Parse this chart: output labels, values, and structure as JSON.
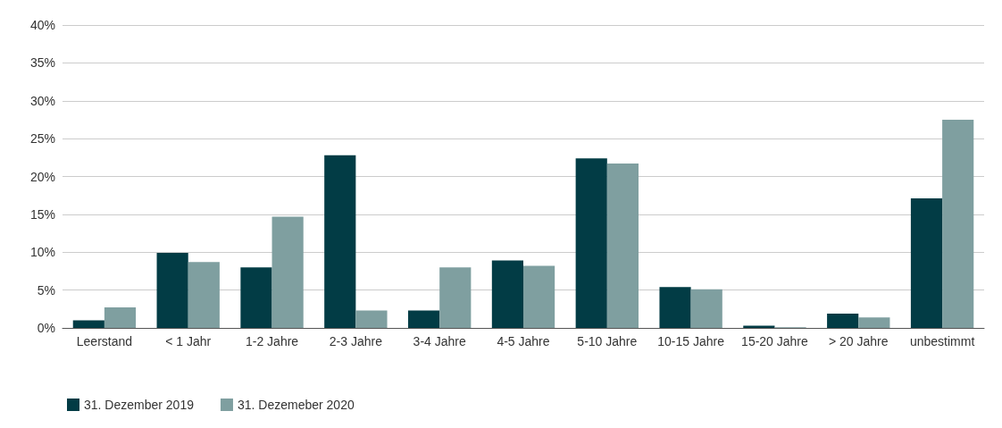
{
  "chart_data": {
    "type": "bar",
    "categories": [
      "Leerstand",
      "< 1 Jahr",
      "1-2 Jahre",
      "2-3 Jahre",
      "3-4 Jahre",
      "4-5 Jahre",
      "5-10 Jahre",
      "10-15 Jahre",
      "15-20 Jahre",
      "> 20 Jahre",
      "unbestimmt"
    ],
    "series": [
      {
        "name": "31. Dezember 2019",
        "color": "#023c45",
        "values": [
          1.0,
          9.9,
          8.0,
          22.8,
          2.3,
          8.9,
          22.4,
          5.4,
          0.3,
          1.9,
          17.1
        ]
      },
      {
        "name": "31. Dezemeber 2020",
        "color": "#7f9fa0",
        "values": [
          2.7,
          8.7,
          14.7,
          2.3,
          8.0,
          8.2,
          21.7,
          5.1,
          0.1,
          1.4,
          27.5
        ]
      }
    ],
    "ylim": [
      0,
      40
    ],
    "yticks": [
      {
        "value": 0,
        "label": "0%"
      },
      {
        "value": 5,
        "label": "5%"
      },
      {
        "value": 10,
        "label": "10%"
      },
      {
        "value": 15,
        "label": "15%"
      },
      {
        "value": 20,
        "label": "20%"
      },
      {
        "value": 25,
        "label": "25%"
      },
      {
        "value": 30,
        "label": "30%"
      },
      {
        "value": 35,
        "label": "35%"
      },
      {
        "value": 40,
        "label": "40%"
      }
    ],
    "grid": "y",
    "legend": "bottom left"
  }
}
